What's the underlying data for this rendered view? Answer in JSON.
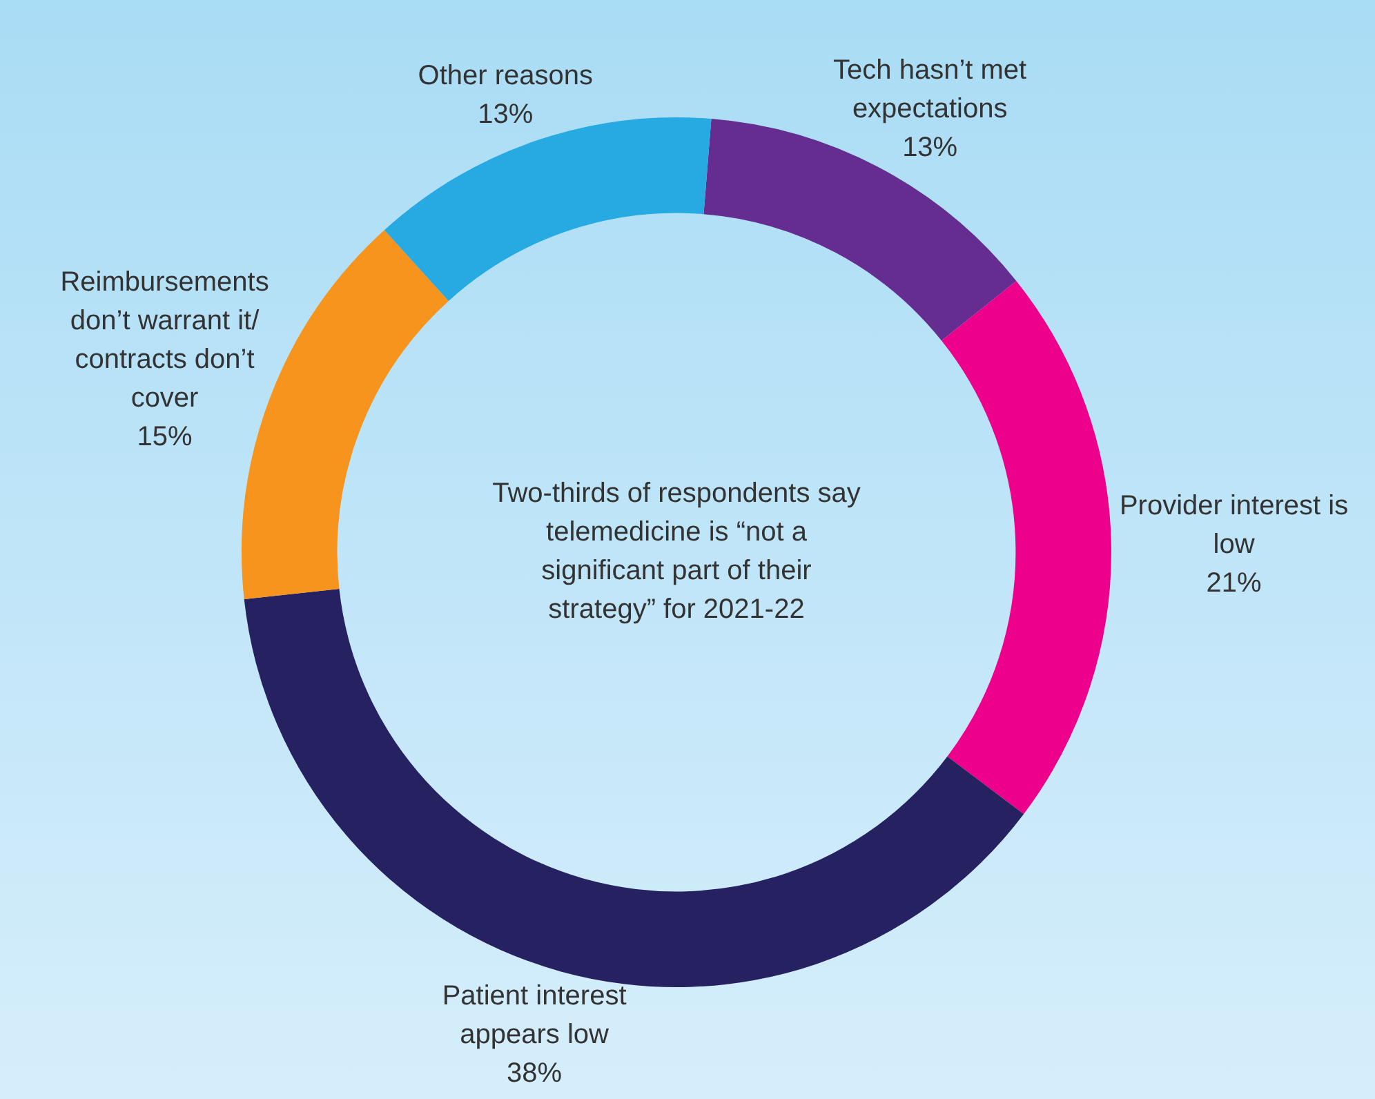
{
  "chart_data": {
    "type": "donut",
    "categories": [
      "Tech hasn’t met expectations",
      "Provider interest is low",
      "Patient interest appears low",
      "Reimbursements don’t warrant it/ contracts don’t cover",
      "Other reasons"
    ],
    "values": [
      13,
      21,
      38,
      15,
      13
    ],
    "value_labels": [
      "13%",
      "21%",
      "38%",
      "15%",
      "13%"
    ],
    "colors": [
      "#652d90",
      "#ec008c",
      "#262261",
      "#f7941d",
      "#27aae1"
    ],
    "annotations": [
      "Two-thirds of respondents say telemedicine is “not a significant part of their strategy” for 2021-22"
    ],
    "legend": false
  }
}
